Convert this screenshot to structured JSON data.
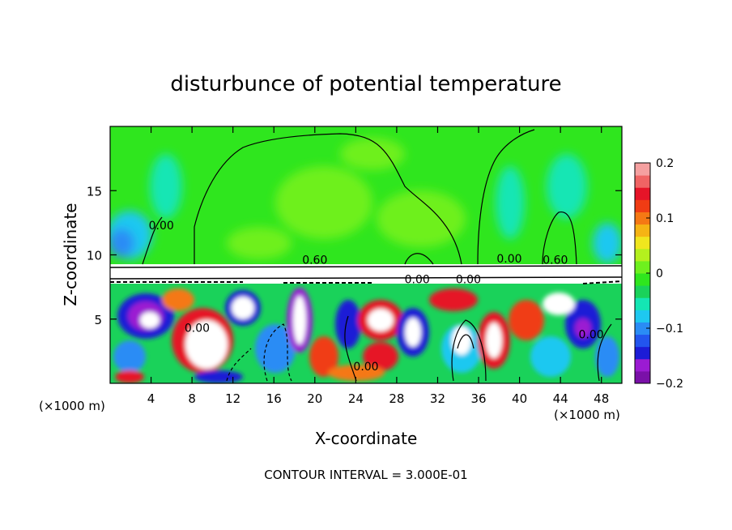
{
  "chart_data": {
    "type": "heatmap",
    "title": "disturbunce of potential temperature",
    "xlabel": "X-coordinate",
    "ylabel": "Z-coordinate",
    "x_unit_left": "(×1000 m)",
    "x_unit_right": "(×1000 m)",
    "xlim": [
      0,
      50
    ],
    "ylim": [
      0,
      20
    ],
    "x_ticks": [
      4,
      8,
      12,
      16,
      20,
      24,
      28,
      32,
      36,
      40,
      44,
      48
    ],
    "x_tick_labels": [
      "4",
      "8",
      "12",
      "16",
      "20",
      "24",
      "28",
      "32",
      "36",
      "40",
      "44",
      "48"
    ],
    "y_ticks": [
      5,
      10,
      15
    ],
    "y_tick_labels": [
      "5",
      "10",
      "15"
    ],
    "colorbar": {
      "range": [
        -0.2,
        0.2
      ],
      "ticks": [
        0.2,
        0.1,
        0,
        -0.1,
        -0.2
      ],
      "tick_labels": [
        "0.2",
        "0.1",
        "0",
        "−0.1",
        "−0.2"
      ],
      "colors": [
        "#7a10a8",
        "#9b1bd2",
        "#1c1cd6",
        "#2255ee",
        "#2a8cf5",
        "#1ec8f0",
        "#14e6b4",
        "#1ad25a",
        "#2fe61e",
        "#6ef01e",
        "#b4f01e",
        "#f0e61e",
        "#f5b414",
        "#f57814",
        "#f03c14",
        "#e61428",
        "#f06464",
        "#f5a0a0"
      ]
    },
    "contour_labels": [
      {
        "text": "0.00",
        "x": 5,
        "z": 12
      },
      {
        "text": "0.60",
        "x": 20,
        "z": 9.3
      },
      {
        "text": "0.00",
        "x": 30,
        "z": 7.8
      },
      {
        "text": "0.00",
        "x": 35,
        "z": 7.8
      },
      {
        "text": "0.00",
        "x": 39,
        "z": 9.4
      },
      {
        "text": "0.60",
        "x": 43.5,
        "z": 9.3
      },
      {
        "text": "0.00",
        "x": 8.5,
        "z": 4
      },
      {
        "text": "0.00",
        "x": 25,
        "z": 1
      },
      {
        "text": "0.00",
        "x": 47,
        "z": 3.5
      }
    ],
    "footer": "CONTOUR INTERVAL = 3.000E-01"
  }
}
